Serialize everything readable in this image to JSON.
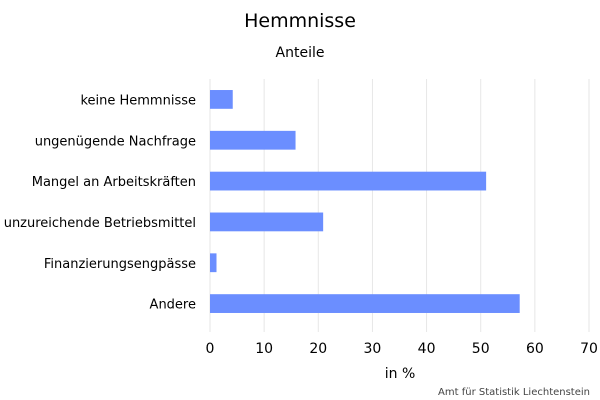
{
  "chart_data": {
    "type": "bar",
    "orientation": "horizontal",
    "title": "Hemmnisse",
    "subtitle": "Anteile",
    "xlabel": "in %",
    "ylabel": "",
    "categories": [
      "keine Hemmnisse",
      "ungenügende Nachfrage",
      "Mangel an Arbeitskräften",
      "unzureichende Betriebsmittel",
      "Finanzierungsengpässe",
      "Andere"
    ],
    "values": [
      4.2,
      15.8,
      51,
      20.9,
      1.2,
      57.2
    ],
    "xlim": [
      0,
      70
    ],
    "xticks": [
      0,
      10,
      20,
      30,
      40,
      50,
      60,
      70
    ],
    "grid": "vertical",
    "bar_color": "#6b8eff",
    "grid_color": "#e6e6e6",
    "source": "Amt für Statistik Liechtenstein"
  }
}
